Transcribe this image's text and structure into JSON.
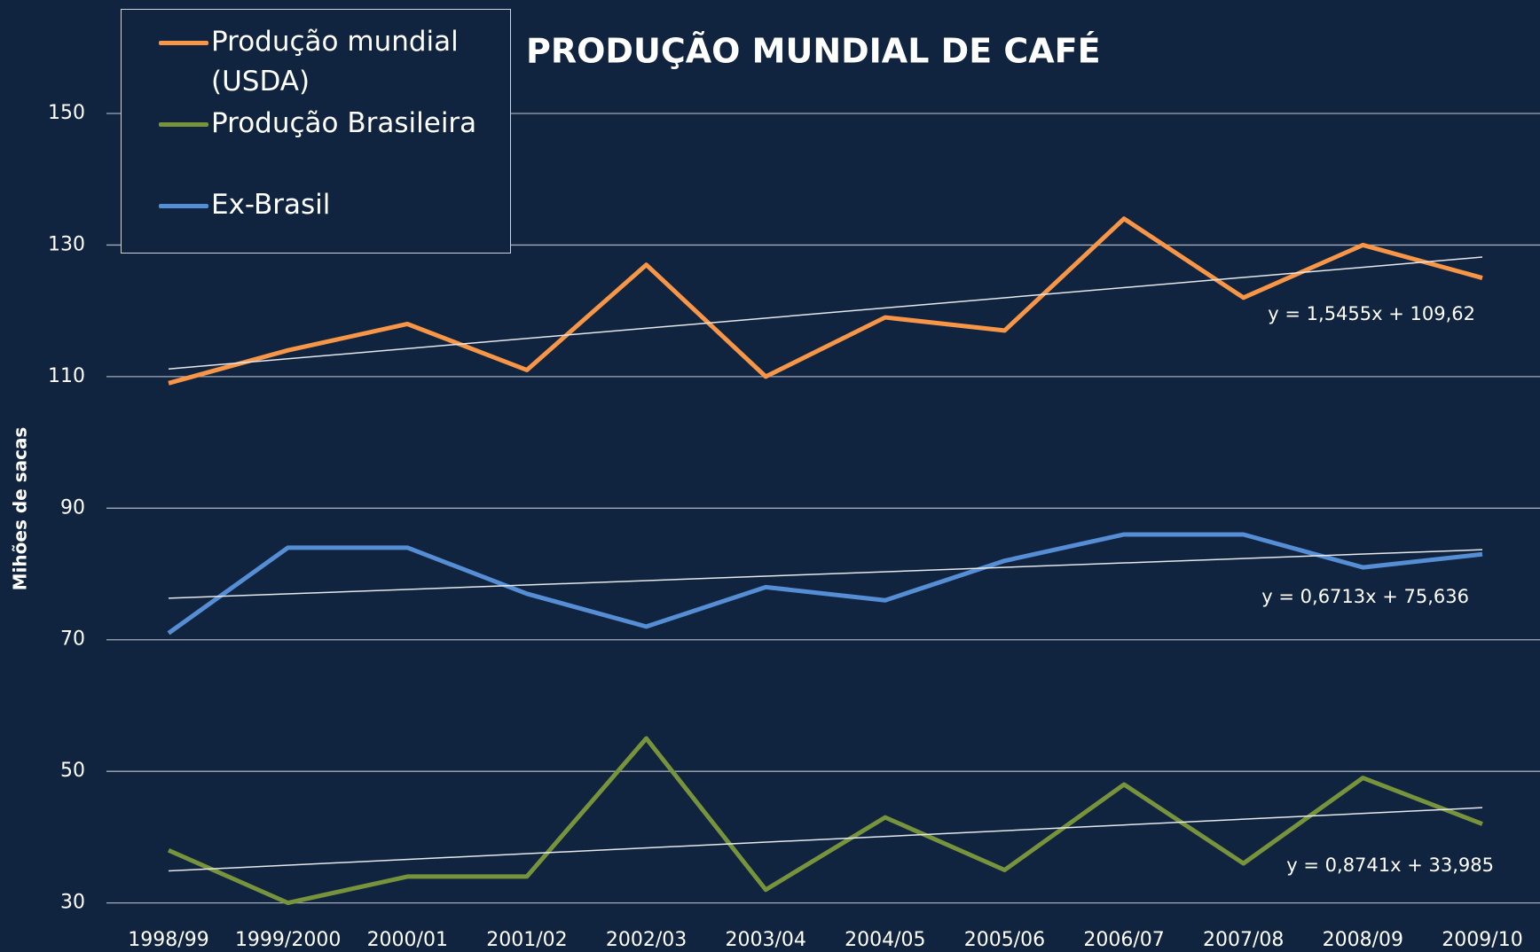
{
  "chart_data": {
    "type": "line",
    "title": "PRODUÇÃO MUNDIAL DE CAFÉ",
    "y_label": "Mihões de sacas",
    "categories": [
      "1998/99",
      "1999/2000",
      "2000/01",
      "2001/02",
      "2002/03",
      "2003/04",
      "2004/05",
      "2005/06",
      "2006/07",
      "2007/08",
      "2008/09",
      "2009/10"
    ],
    "series": [
      {
        "name": "Produção mundial (USDA)",
        "color": "#f79646",
        "values": [
          109,
          114,
          118,
          111,
          127,
          110,
          119,
          117,
          134,
          122,
          130,
          125
        ],
        "trendline": {
          "slope": 1.5455,
          "intercept": 109.62,
          "label": "y = 1,5455x + 109,62"
        }
      },
      {
        "name": "Produção Brasileira",
        "color": "#77933c",
        "values": [
          38,
          30,
          34,
          34,
          55,
          32,
          43,
          35,
          48,
          36,
          49,
          42
        ],
        "trendline": {
          "slope": 0.8741,
          "intercept": 33.985,
          "label": "y = 0,8741x + 33,985"
        }
      },
      {
        "name": "Ex-Brasil",
        "color": "#558ed5",
        "values": [
          71,
          84,
          84,
          77,
          72,
          78,
          76,
          82,
          86,
          86,
          81,
          83
        ],
        "trendline": {
          "slope": 0.6713,
          "intercept": 75.636,
          "label": "y = 0,6713x + 75,636"
        }
      }
    ],
    "ylim": [
      30,
      150
    ],
    "yticks": [
      30,
      50,
      70,
      90,
      110,
      130,
      150
    ],
    "grid": true,
    "legend": "top-left"
  }
}
